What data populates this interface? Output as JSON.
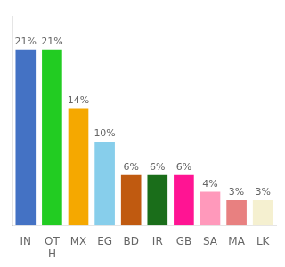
{
  "chart_data": {
    "type": "bar",
    "categories": [
      "IN",
      "OT\nH",
      "MX",
      "EG",
      "BD",
      "IR",
      "GB",
      "SA",
      "MA",
      "LK"
    ],
    "values": [
      21,
      21,
      14,
      10,
      6,
      6,
      6,
      4,
      3,
      3
    ],
    "value_labels": [
      "21%",
      "21%",
      "14%",
      "10%",
      "6%",
      "6%",
      "6%",
      "4%",
      "3%",
      "3%"
    ],
    "colors": [
      "#4472c4",
      "#22cc22",
      "#f5a800",
      "#87ceeb",
      "#c05a10",
      "#1a6e1a",
      "#ff1493",
      "#ff99bb",
      "#e88080",
      "#f5f0d0"
    ],
    "ylim": [
      0,
      25
    ],
    "grid": false,
    "data_labels": true,
    "tick_labels": "x"
  }
}
